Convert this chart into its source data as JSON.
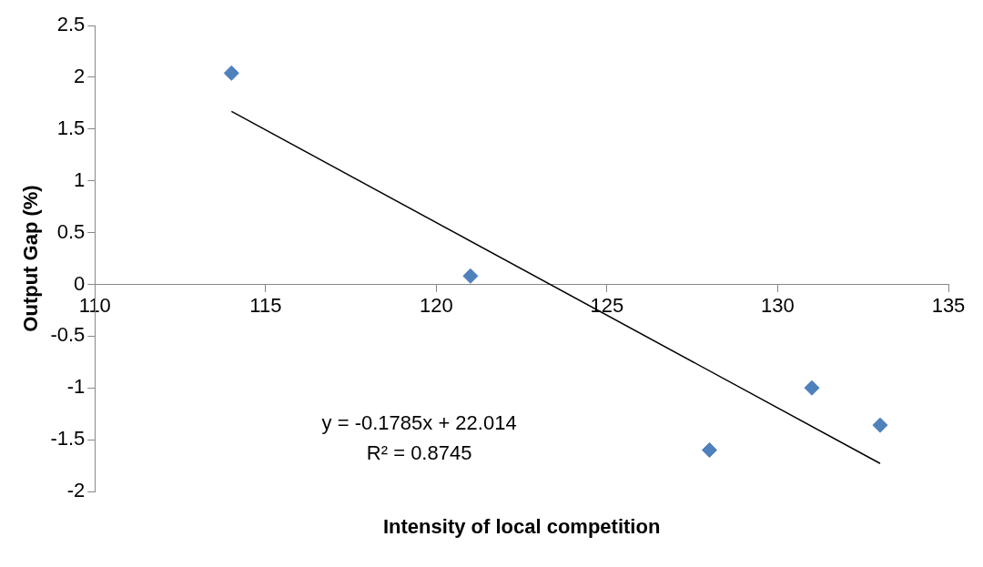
{
  "chart_data": {
    "type": "scatter",
    "xlabel": "Intensity of local competition",
    "ylabel": "Output Gap (%)",
    "xlim": [
      110,
      135
    ],
    "xticks": [
      110,
      115,
      120,
      125,
      130,
      135
    ],
    "ylim": [
      -2,
      2.5
    ],
    "yticks": [
      -2,
      -1.5,
      -1,
      -0.5,
      0,
      0.5,
      1,
      1.5,
      2,
      2.5
    ],
    "grid": false,
    "legend": false,
    "marker": "diamond",
    "series": [
      {
        "type": "scatter",
        "color": "#4f81bd",
        "x": [
          114,
          121,
          128,
          131,
          133
        ],
        "values": [
          2.04,
          0.08,
          -1.6,
          -1.0,
          -1.36
        ]
      },
      {
        "type": "line",
        "color": "#000000",
        "marker": "none",
        "line_style": "solid",
        "x": [
          114,
          133
        ],
        "values": [
          1.67,
          -1.73
        ]
      }
    ],
    "annotations": [
      "y = -0.1785x + 22.014",
      "R² = 0.8745"
    ]
  }
}
